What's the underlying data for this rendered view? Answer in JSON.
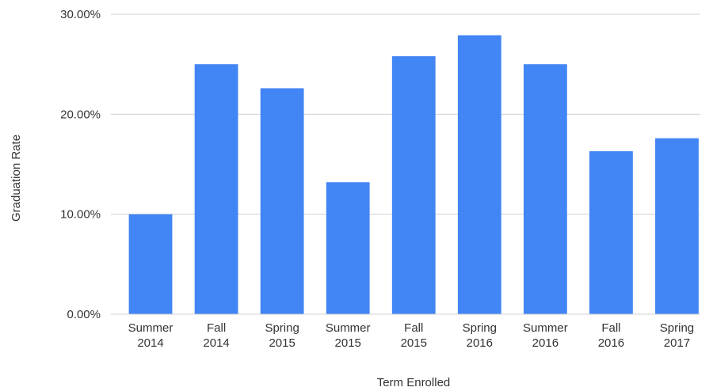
{
  "chart_data": {
    "type": "bar",
    "x_label": "Term Enrolled",
    "y_label": "Graduation Rate",
    "categories": [
      "Summer 2014",
      "Fall 2014",
      "Spring 2015",
      "Summer 2015",
      "Fall 2015",
      "Spring 2016",
      "Summer 2016",
      "Fall 2016",
      "Spring 2017"
    ],
    "values": [
      10.0,
      25.0,
      22.6,
      13.2,
      25.8,
      27.9,
      25.0,
      16.3,
      17.6
    ],
    "color": "#4285f4",
    "ylim": [
      0,
      30
    ],
    "yticks": [
      {
        "value": 0,
        "label": "0.00%"
      },
      {
        "value": 10,
        "label": "10.00%"
      },
      {
        "value": 20,
        "label": "20.00%"
      },
      {
        "value": 30,
        "label": "30.00%"
      }
    ],
    "grid": true
  }
}
